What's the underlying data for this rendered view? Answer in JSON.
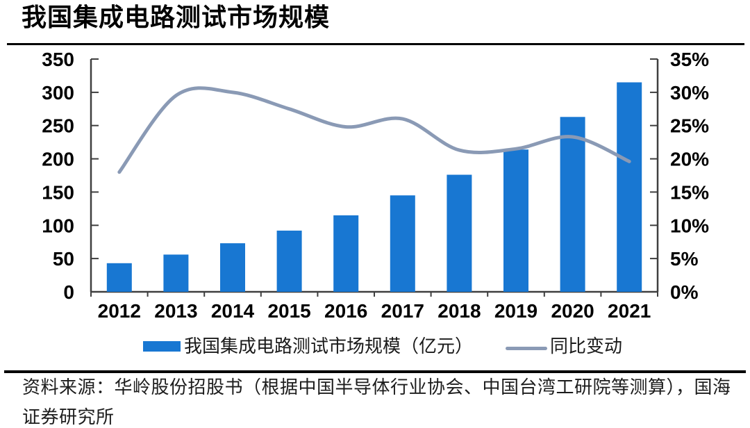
{
  "page": {
    "title": "我国集成电路测试市场规模"
  },
  "legend": {
    "bar_label": "我国集成电路测试市场规模（亿元）",
    "line_label": "同比变动"
  },
  "source": {
    "text": "资料来源：华岭股份招股书（根据中国半导体行业协会、中国台湾工研院等测算），国海证券研究所"
  },
  "colors": {
    "bar": "#1877D2",
    "line": "#8A9AB5",
    "axis": "#3F3F3F",
    "text": "#000000"
  },
  "chart_data": {
    "type": "bar",
    "subtype": "combo-bar-line-dual-axis",
    "title": "我国集成电路测试市场规模",
    "categories": [
      "2012",
      "2013",
      "2014",
      "2015",
      "2016",
      "2017",
      "2018",
      "2019",
      "2020",
      "2021"
    ],
    "series": [
      {
        "name": "我国集成电路测试市场规模（亿元）",
        "type": "bar",
        "axis": "left",
        "unit": "亿元",
        "values": [
          43,
          56,
          73,
          92,
          115,
          145,
          176,
          214,
          263,
          315
        ]
      },
      {
        "name": "同比变动",
        "type": "line",
        "axis": "right",
        "unit": "%",
        "values": [
          18.0,
          29.5,
          30.0,
          27.5,
          24.8,
          26.0,
          21.3,
          21.5,
          23.3,
          19.6
        ]
      }
    ],
    "left_axis": {
      "min": 0,
      "max": 350,
      "step": 50,
      "ticks": [
        "0",
        "50",
        "100",
        "150",
        "200",
        "250",
        "300",
        "350"
      ]
    },
    "right_axis": {
      "min": 0,
      "max": 35,
      "step": 5,
      "ticks": [
        "0%",
        "5%",
        "10%",
        "15%",
        "20%",
        "25%",
        "30%",
        "35%"
      ]
    },
    "grid": false,
    "legend_position": "bottom",
    "smooth_line": true
  }
}
